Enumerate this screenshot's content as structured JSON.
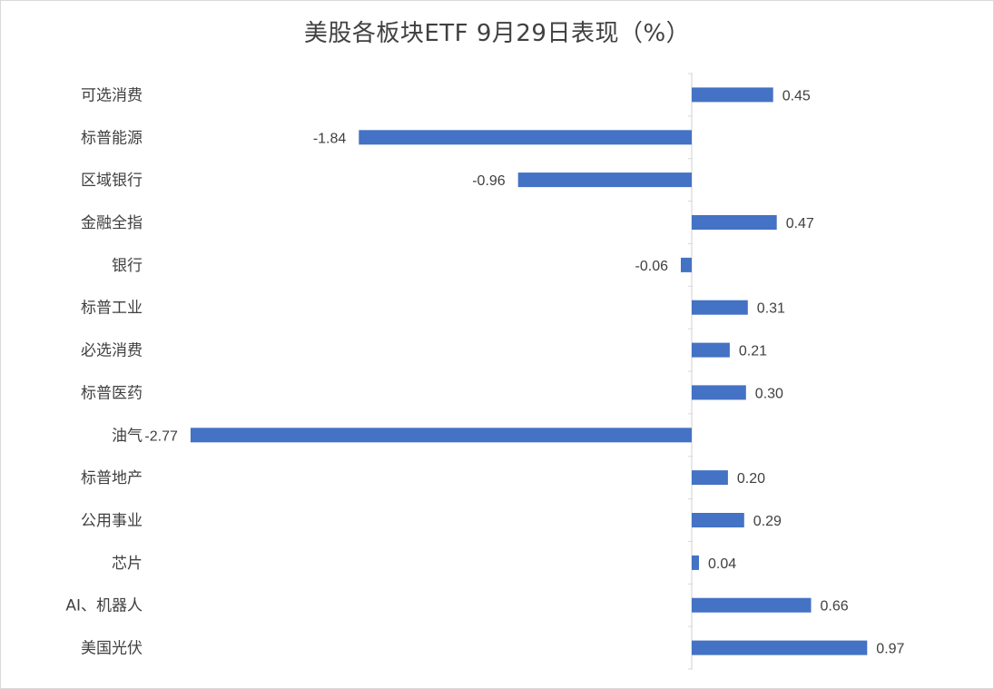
{
  "chart_data": {
    "type": "bar",
    "orientation": "horizontal",
    "title": "美股各板块ETF  9月29日表现（%）",
    "categories": [
      "可选消费",
      "标普能源",
      "区域银行",
      "金融全指",
      "银行",
      "标普工业",
      "必选消费",
      "标普医药",
      "油气",
      "标普地产",
      "公用事业",
      "芯片",
      "AI、机器人",
      "美国光伏"
    ],
    "values": [
      0.45,
      -1.84,
      -0.96,
      0.47,
      -0.06,
      0.31,
      0.21,
      0.3,
      -2.77,
      0.2,
      0.29,
      0.04,
      0.66,
      0.97
    ],
    "value_labels": [
      "0.45",
      "-1.84",
      "-0.96",
      "0.47",
      "-0.06",
      "0.31",
      "0.21",
      "0.30",
      "-2.77",
      "0.20",
      "0.29",
      "0.04",
      "0.66",
      "0.97"
    ],
    "xlim": [
      -2.77,
      0.97
    ],
    "bar_color": "#4472C4",
    "axis_color": "#d9d9d9",
    "grid": false,
    "legend": false
  }
}
